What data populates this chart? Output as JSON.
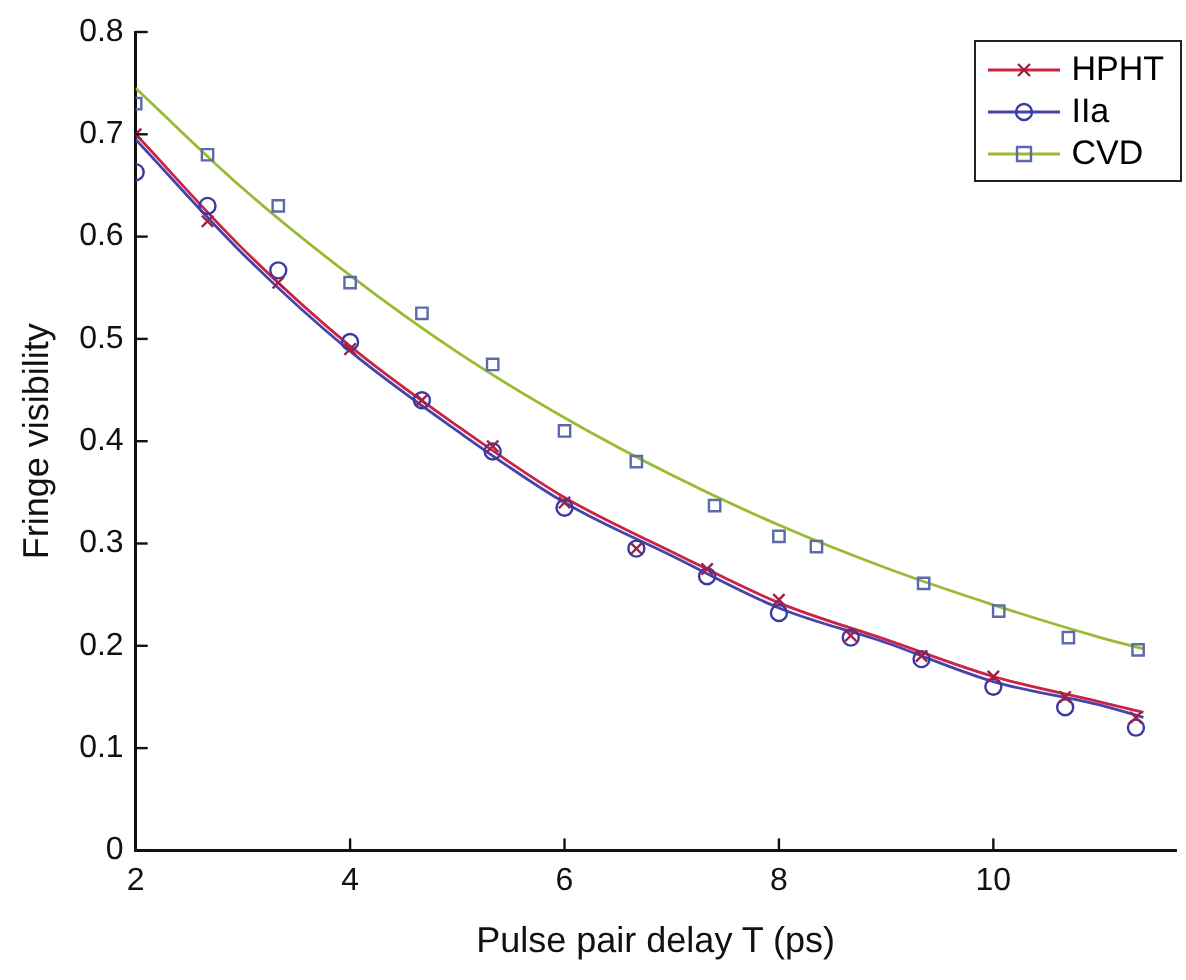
{
  "chart_data": {
    "type": "scatter",
    "xlabel": "Pulse pair delay T (ps)",
    "ylabel": "Fringe visibility",
    "xlim": [
      2,
      11.7
    ],
    "xticks": [
      2,
      4,
      6,
      8,
      10
    ],
    "ylim": [
      0,
      0.8
    ],
    "yticks": [
      0,
      0.1,
      0.2,
      0.3,
      0.4,
      0.5,
      0.6,
      0.7,
      0.8
    ],
    "grid": false,
    "legend": "top right",
    "series": [
      {
        "name": "HPHT",
        "marker": "cross",
        "color": "#a0204a",
        "x": [
          2,
          2.67,
          3.33,
          4,
          4.67,
          5.33,
          6,
          6.67,
          7.33,
          8,
          8.67,
          9.33,
          10,
          10.67,
          11.33
        ],
        "values": [
          0.7,
          0.615,
          0.555,
          0.49,
          0.44,
          0.395,
          0.34,
          0.295,
          0.275,
          0.245,
          0.21,
          0.19,
          0.17,
          0.15,
          0.13
        ]
      },
      {
        "name": "IIa",
        "marker": "circle",
        "color": "#3a3aa0",
        "x": [
          2,
          2.67,
          3.33,
          4,
          4.67,
          5.33,
          6,
          6.67,
          7.33,
          8,
          8.67,
          9.33,
          10,
          10.67,
          11.33
        ],
        "values": [
          0.663,
          0.63,
          0.567,
          0.497,
          0.44,
          0.39,
          0.335,
          0.295,
          0.268,
          0.232,
          0.208,
          0.187,
          0.16,
          0.14,
          0.12
        ]
      },
      {
        "name": "CVD",
        "marker": "square",
        "color": "#5a6aaa",
        "x": [
          2,
          2.67,
          3.33,
          4,
          4.67,
          5.33,
          6,
          6.67,
          7.4,
          8,
          8.35,
          9.35,
          10.05,
          10.7,
          11.35
        ],
        "values": [
          0.73,
          0.68,
          0.63,
          0.555,
          0.525,
          0.475,
          0.41,
          0.38,
          0.337,
          0.307,
          0.297,
          0.261,
          0.234,
          0.208,
          0.196
        ]
      },
      {
        "type": "line",
        "marker": "none",
        "color": "#cc2244",
        "x": [
          2,
          3,
          4,
          5,
          6,
          7,
          8,
          9,
          10,
          11,
          11.4
        ],
        "values": [
          0.7,
          0.588,
          0.493,
          0.415,
          0.345,
          0.292,
          0.242,
          0.206,
          0.17,
          0.145,
          0.135
        ]
      },
      {
        "type": "line",
        "marker": "none",
        "color": "#4444aa",
        "x": [
          2,
          3,
          4,
          5,
          6,
          7,
          8,
          9,
          10,
          11,
          11.4
        ],
        "values": [
          0.695,
          0.583,
          0.488,
          0.41,
          0.34,
          0.288,
          0.237,
          0.203,
          0.165,
          0.142,
          0.13
        ]
      },
      {
        "type": "line",
        "marker": "none",
        "color": "#99bb33",
        "x": [
          2,
          3,
          4,
          5,
          6,
          7,
          8,
          9,
          10,
          11,
          11.4
        ],
        "values": [
          0.745,
          0.647,
          0.562,
          0.487,
          0.423,
          0.367,
          0.318,
          0.276,
          0.24,
          0.208,
          0.197
        ]
      }
    ]
  }
}
